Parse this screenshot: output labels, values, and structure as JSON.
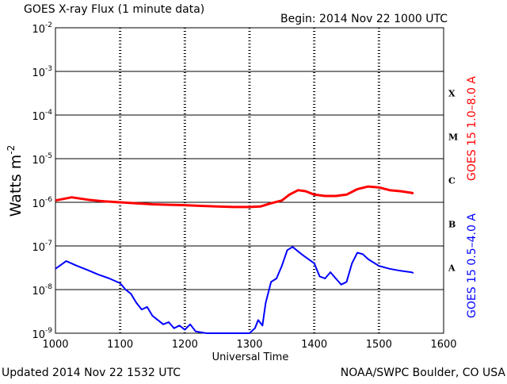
{
  "header": {
    "title": "GOES X-ray Flux (1 minute data)",
    "begin": "Begin: 2014 Nov 22 1000 UTC"
  },
  "footer": {
    "updated": "Updated 2014 Nov 22 1532 UTC",
    "credit": "NOAA/SWPC Boulder, CO USA"
  },
  "chart_data": {
    "type": "line",
    "title": "GOES X-ray Flux (1 minute data)",
    "xlabel": "Universal Time",
    "ylabel_base": "Watts m",
    "ylabel_exp": "-2",
    "xlim": [
      1000,
      1600
    ],
    "xticks": [
      "1000",
      "1100",
      "1200",
      "1300",
      "1400",
      "1500",
      "1600"
    ],
    "ylim_log10": [
      -9,
      -2
    ],
    "y_scale": "log",
    "yticks": [
      {
        "base": "10",
        "exp": "-9"
      },
      {
        "base": "10",
        "exp": "-8"
      },
      {
        "base": "10",
        "exp": "-7"
      },
      {
        "base": "10",
        "exp": "-6"
      },
      {
        "base": "10",
        "exp": "-5"
      },
      {
        "base": "10",
        "exp": "-4"
      },
      {
        "base": "10",
        "exp": "-3"
      },
      {
        "base": "10",
        "exp": "-2"
      }
    ],
    "flare_classes": [
      {
        "label": "A",
        "log10": -7.5
      },
      {
        "label": "B",
        "log10": -6.5
      },
      {
        "label": "C",
        "log10": -5.5
      },
      {
        "label": "M",
        "log10": -4.5
      },
      {
        "label": "X",
        "log10": -3.5
      }
    ],
    "series": [
      {
        "name": "GOES 15 1.0–8.0 A",
        "color": "#ff0000",
        "x": [
          "10:00",
          "10:15",
          "10:30",
          "10:45",
          "11:00",
          "11:15",
          "11:30",
          "11:45",
          "12:00",
          "12:15",
          "12:30",
          "12:45",
          "13:00",
          "13:10",
          "13:20",
          "13:30",
          "13:37",
          "13:45",
          "13:52",
          "14:00",
          "14:10",
          "14:20",
          "14:30",
          "14:40",
          "14:50",
          "15:00",
          "15:10",
          "15:20",
          "15:30",
          "15:32"
        ],
        "y": [
          1.1e-06,
          1.3e-06,
          1.15e-06,
          1.05e-06,
          1e-06,
          9.5e-07,
          9e-07,
          8.8e-07,
          8.6e-07,
          8.3e-07,
          8e-07,
          7.8e-07,
          7.8e-07,
          8e-07,
          9.5e-07,
          1.1e-06,
          1.5e-06,
          1.9e-06,
          1.8e-06,
          1.5e-06,
          1.4e-06,
          1.4e-06,
          1.5e-06,
          2e-06,
          2.3e-06,
          2.2e-06,
          1.9e-06,
          1.8e-06,
          1.65e-06,
          1.6e-06
        ]
      },
      {
        "name": "GOES 15 0.5–4.0 A",
        "color": "#0000ff",
        "x": [
          "10:00",
          "10:10",
          "10:20",
          "10:30",
          "10:40",
          "10:50",
          "11:00",
          "11:05",
          "11:10",
          "11:15",
          "11:20",
          "11:25",
          "11:30",
          "11:35",
          "11:40",
          "11:45",
          "11:50",
          "11:55",
          "12:00",
          "12:05",
          "12:10",
          "12:20",
          "12:30",
          "12:40",
          "12:50",
          "13:00",
          "13:05",
          "13:08",
          "13:12",
          "13:15",
          "13:20",
          "13:25",
          "13:30",
          "13:35",
          "13:40",
          "13:45",
          "13:50",
          "14:00",
          "14:05",
          "14:10",
          "14:15",
          "14:20",
          "14:25",
          "14:30",
          "14:35",
          "14:40",
          "14:45",
          "14:50",
          "15:00",
          "15:10",
          "15:20",
          "15:30",
          "15:32"
        ],
        "y": [
          3e-08,
          4.5e-08,
          3.5e-08,
          2.8e-08,
          2.2e-08,
          1.8e-08,
          1.4e-08,
          1e-08,
          8e-09,
          5e-09,
          3.5e-09,
          4e-09,
          2.5e-09,
          2e-09,
          1.6e-09,
          1.8e-09,
          1.3e-09,
          1.5e-09,
          1.2e-09,
          1.6e-09,
          1.1e-09,
          1e-09,
          1e-09,
          1e-09,
          1e-09,
          1e-09,
          1.3e-09,
          2e-09,
          1.5e-09,
          5e-09,
          1.5e-08,
          1.8e-08,
          3.5e-08,
          8e-08,
          9.5e-08,
          7.5e-08,
          6e-08,
          4e-08,
          2e-08,
          1.8e-08,
          2.5e-08,
          1.8e-08,
          1.3e-08,
          1.5e-08,
          4e-08,
          7e-08,
          6.5e-08,
          5e-08,
          3.5e-08,
          3e-08,
          2.7e-08,
          2.5e-08,
          2.4e-08
        ]
      }
    ],
    "grid": true,
    "legend": "right-side vertical labels"
  }
}
